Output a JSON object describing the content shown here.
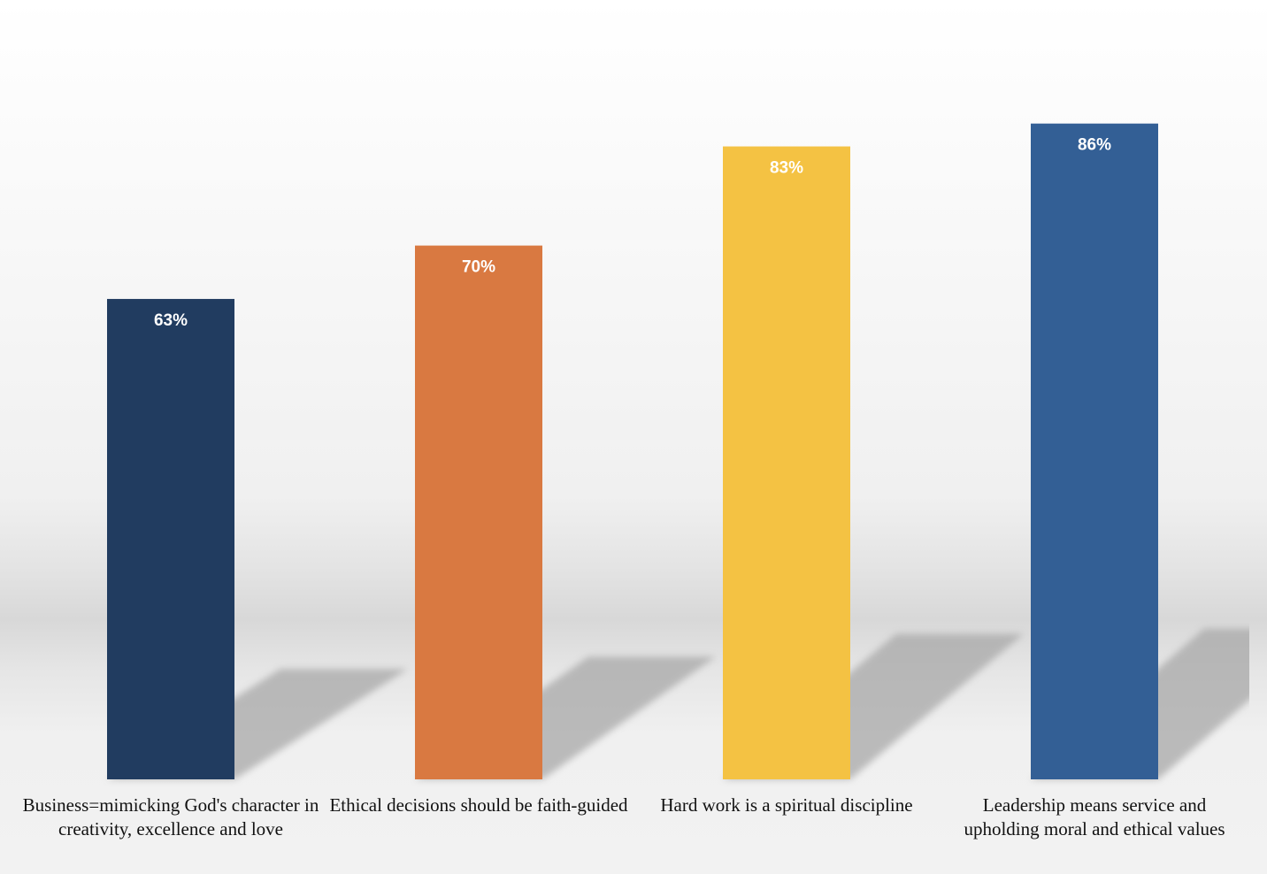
{
  "chart_data": {
    "type": "bar",
    "categories": [
      "Business=mimicking God's character in creativity, excellence and love",
      "Ethical decisions should be faith-guided",
      "Hard work is a spiritual discipline",
      "Leadership means service and upholding moral and ethical values"
    ],
    "values": [
      63,
      70,
      83,
      86
    ],
    "data_labels": [
      "63%",
      "70%",
      "83%",
      "86%"
    ],
    "colors": [
      "#213c60",
      "#d97941",
      "#f4c243",
      "#335f95"
    ],
    "ylim": [
      0,
      100
    ],
    "grid": false
  }
}
